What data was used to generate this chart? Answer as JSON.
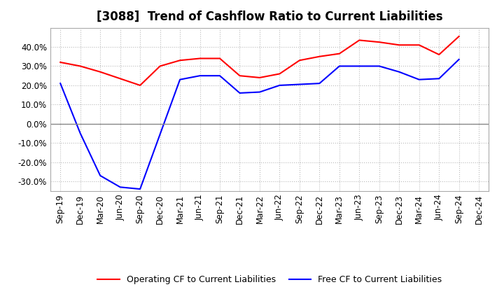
{
  "title": "[3088]  Trend of Cashflow Ratio to Current Liabilities",
  "x_labels": [
    "Sep-19",
    "Dec-19",
    "Mar-20",
    "Jun-20",
    "Sep-20",
    "Dec-20",
    "Mar-21",
    "Jun-21",
    "Sep-21",
    "Dec-21",
    "Mar-22",
    "Jun-22",
    "Sep-22",
    "Dec-22",
    "Mar-23",
    "Jun-23",
    "Sep-23",
    "Dec-23",
    "Mar-24",
    "Jun-24",
    "Sep-24",
    "Dec-24"
  ],
  "operating_cf": [
    32.0,
    30.0,
    27.0,
    null,
    20.0,
    30.0,
    33.0,
    34.0,
    34.0,
    25.0,
    24.0,
    26.0,
    33.0,
    35.0,
    36.5,
    43.5,
    42.5,
    41.0,
    41.0,
    36.0,
    45.5,
    null
  ],
  "free_cf": [
    21.0,
    -5.0,
    -27.0,
    -33.0,
    -34.0,
    null,
    23.0,
    25.0,
    25.0,
    16.0,
    16.5,
    20.0,
    20.5,
    21.0,
    30.0,
    30.0,
    30.0,
    27.0,
    23.0,
    23.5,
    33.5,
    null
  ],
  "operating_color": "#ff0000",
  "free_color": "#0000ff",
  "ylim": [
    -35,
    50
  ],
  "yticks": [
    -30,
    -20,
    -10,
    0,
    10,
    20,
    30,
    40
  ],
  "background_color": "#ffffff",
  "plot_bg_color": "#ffffff",
  "grid_color": "#bbbbbb",
  "legend_labels": [
    "Operating CF to Current Liabilities",
    "Free CF to Current Liabilities"
  ],
  "title_fontsize": 12,
  "tick_fontsize": 8.5,
  "legend_fontsize": 9
}
